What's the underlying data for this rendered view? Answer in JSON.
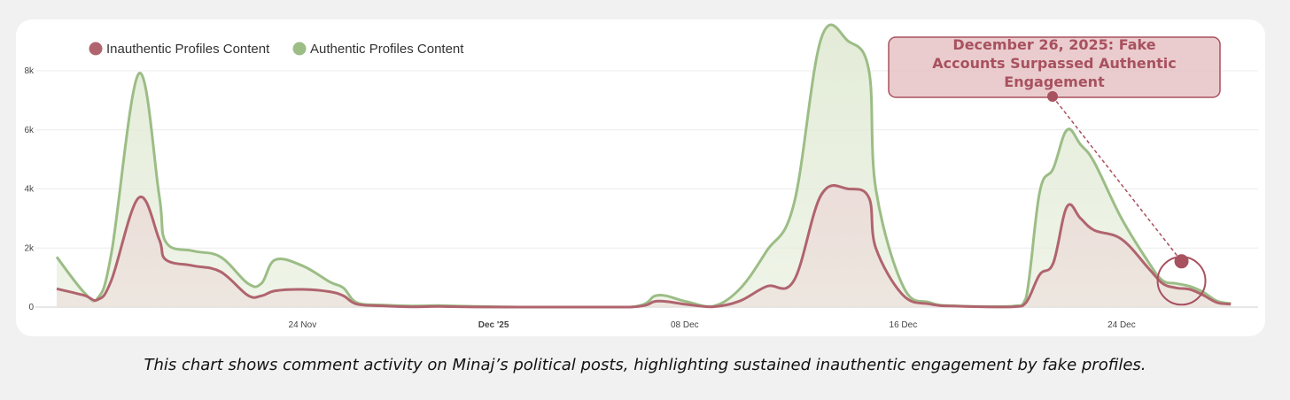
{
  "chart_data": {
    "type": "area",
    "title": "",
    "xlabel": "",
    "ylabel": "",
    "x_tick_labels": [
      {
        "label": "24 Nov",
        "bold": false,
        "date": "2025-11-24"
      },
      {
        "label": "Dec '25",
        "bold": true,
        "date": "2025-12-01"
      },
      {
        "label": "08 Dec",
        "bold": false,
        "date": "2025-12-08"
      },
      {
        "label": "16 Dec",
        "bold": false,
        "date": "2025-12-16"
      },
      {
        "label": "24 Dec",
        "bold": false,
        "date": "2025-12-24"
      }
    ],
    "y_tick_labels": [
      {
        "label": "0",
        "value": 0
      },
      {
        "label": "2k",
        "value": 2000
      },
      {
        "label": "4k",
        "value": 4000
      },
      {
        "label": "6k",
        "value": 6000
      },
      {
        "label": "8k",
        "value": 8000
      }
    ],
    "ylim": [
      0,
      9500
    ],
    "xlim": [
      "2025-11-15",
      "2025-12-29"
    ],
    "grid": true,
    "legend_position": "top-left",
    "series": [
      {
        "name": "Inauthentic Profiles Content",
        "color": "#b0646e",
        "fill": "#ecdcd9",
        "points": [
          [
            "2025-11-15",
            620
          ],
          [
            "2025-11-16",
            400
          ],
          [
            "2025-11-16 12:00",
            250
          ],
          [
            "2025-11-17",
            900
          ],
          [
            "2025-11-18",
            3700
          ],
          [
            "2025-11-18 18:00",
            2300
          ],
          [
            "2025-11-19",
            1600
          ],
          [
            "2025-11-20",
            1400
          ],
          [
            "2025-11-21",
            1200
          ],
          [
            "2025-11-22",
            400
          ],
          [
            "2025-11-22 12:00",
            380
          ],
          [
            "2025-11-23",
            550
          ],
          [
            "2025-11-24",
            600
          ],
          [
            "2025-11-25",
            520
          ],
          [
            "2025-11-25 12:00",
            380
          ],
          [
            "2025-11-26",
            100
          ],
          [
            "2025-11-27",
            40
          ],
          [
            "2025-11-28",
            10
          ],
          [
            "2025-11-29",
            20
          ],
          [
            "2025-11-30",
            5
          ],
          [
            "2025-12-02",
            0
          ],
          [
            "2025-12-06",
            0
          ],
          [
            "2025-12-07",
            200
          ],
          [
            "2025-12-08",
            100
          ],
          [
            "2025-12-09",
            10
          ],
          [
            "2025-12-10",
            200
          ],
          [
            "2025-12-11",
            700
          ],
          [
            "2025-12-12",
            900
          ],
          [
            "2025-12-13",
            3800
          ],
          [
            "2025-12-14",
            4000
          ],
          [
            "2025-12-14 18:00",
            3700
          ],
          [
            "2025-12-15",
            2000
          ],
          [
            "2025-12-16",
            400
          ],
          [
            "2025-12-17",
            100
          ],
          [
            "2025-12-18",
            30
          ],
          [
            "2025-12-20",
            10
          ],
          [
            "2025-12-20 12:00",
            150
          ],
          [
            "2025-12-21",
            1100
          ],
          [
            "2025-12-21 12:00",
            1500
          ],
          [
            "2025-12-22",
            3400
          ],
          [
            "2025-12-22 12:00",
            3000
          ],
          [
            "2025-12-23",
            2600
          ],
          [
            "2025-12-24",
            2300
          ],
          [
            "2025-12-25",
            1300
          ],
          [
            "2025-12-25 12:00",
            800
          ],
          [
            "2025-12-26",
            650
          ],
          [
            "2025-12-26 12:00",
            600
          ],
          [
            "2025-12-27",
            400
          ],
          [
            "2025-12-27 12:00",
            150
          ],
          [
            "2025-12-28",
            100
          ]
        ]
      },
      {
        "name": "Authentic Profiles Content",
        "color": "#9cbd86",
        "fill": "#e2ebd6",
        "points": [
          [
            "2025-11-15",
            1700
          ],
          [
            "2025-11-16",
            500
          ],
          [
            "2025-11-16 12:00",
            300
          ],
          [
            "2025-11-17",
            1800
          ],
          [
            "2025-11-18",
            7900
          ],
          [
            "2025-11-18 18:00",
            3800
          ],
          [
            "2025-11-19",
            2200
          ],
          [
            "2025-11-20",
            1900
          ],
          [
            "2025-11-21",
            1700
          ],
          [
            "2025-11-22",
            800
          ],
          [
            "2025-11-22 12:00",
            800
          ],
          [
            "2025-11-23",
            1600
          ],
          [
            "2025-11-24",
            1400
          ],
          [
            "2025-11-25",
            850
          ],
          [
            "2025-11-25 12:00",
            650
          ],
          [
            "2025-11-26",
            150
          ],
          [
            "2025-11-27",
            70
          ],
          [
            "2025-11-28",
            40
          ],
          [
            "2025-11-29",
            50
          ],
          [
            "2025-11-30",
            30
          ],
          [
            "2025-12-02",
            0
          ],
          [
            "2025-12-06",
            0
          ],
          [
            "2025-12-07",
            400
          ],
          [
            "2025-12-08",
            200
          ],
          [
            "2025-12-09",
            20
          ],
          [
            "2025-12-10",
            600
          ],
          [
            "2025-12-11",
            1900
          ],
          [
            "2025-12-12",
            3500
          ],
          [
            "2025-12-13",
            9100
          ],
          [
            "2025-12-14",
            9000
          ],
          [
            "2025-12-14 18:00",
            8000
          ],
          [
            "2025-12-15",
            4000
          ],
          [
            "2025-12-16",
            700
          ],
          [
            "2025-12-17",
            150
          ],
          [
            "2025-12-18",
            40
          ],
          [
            "2025-12-20",
            30
          ],
          [
            "2025-12-20 12:00",
            300
          ],
          [
            "2025-12-21",
            3900
          ],
          [
            "2025-12-21 12:00",
            4700
          ],
          [
            "2025-12-22",
            6000
          ],
          [
            "2025-12-22 12:00",
            5500
          ],
          [
            "2025-12-23",
            4900
          ],
          [
            "2025-12-24",
            3000
          ],
          [
            "2025-12-25",
            1500
          ],
          [
            "2025-12-25 12:00",
            900
          ],
          [
            "2025-12-26",
            800
          ],
          [
            "2025-12-26 12:00",
            700
          ],
          [
            "2025-12-27",
            500
          ],
          [
            "2025-12-27 12:00",
            200
          ],
          [
            "2025-12-28",
            120
          ]
        ]
      }
    ],
    "annotation": {
      "text_lines": [
        "December 26, 2025: Fake",
        "Accounts  Surpassed  Authentic",
        "Engagement"
      ],
      "date": "2025-12-26",
      "value": 1400,
      "color": "#a8515f"
    }
  },
  "caption": "This chart shows comment activity on Minaj’s political posts, highlighting sustained inauthentic engagement by fake profiles."
}
